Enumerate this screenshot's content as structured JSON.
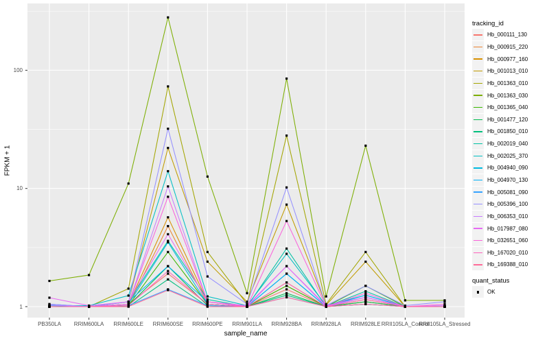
{
  "chart_data": {
    "type": "line",
    "title": "",
    "xlabel": "sample_name",
    "ylabel": "FPKM + 1",
    "y_scale": "log10",
    "y_ticks": [
      "1",
      "10",
      "100"
    ],
    "y_tick_values": [
      1,
      10,
      100
    ],
    "y_minor_values": [
      3.1623,
      31.623,
      316.23
    ],
    "ylim": [
      0.82,
      360
    ],
    "grid": true,
    "panel_background": "#EBEBEB",
    "gridline_color": "#FFFFFF",
    "point_color": "#000000",
    "axis_text_color": "#4D4D4D",
    "legend_position": "right",
    "legend_titles": {
      "tracking": "tracking_id",
      "quant": "quant_status"
    },
    "quant_label": "OK",
    "quant_marker": "black-square",
    "categories": [
      "PB350LA",
      "RRIM600LA",
      "RRIM600LE",
      "RRIM600SE",
      "RRIM600PE",
      "RRIM901LA",
      "RRIM928BA",
      "RRIM928LA",
      "RRIM928LE",
      "RRII105LA_Control",
      "RRII105LA_Stressed"
    ],
    "series": [
      {
        "name": "Hb_000111_130",
        "color": "#F8766D",
        "values": [
          1.02,
          1.0,
          1.05,
          1.9,
          1.05,
          1.0,
          1.4,
          1.0,
          1.1,
          1.0,
          1.0
        ]
      },
      {
        "name": "Hb_000915_220",
        "color": "#EA8331",
        "values": [
          1.0,
          1.0,
          1.02,
          4.8,
          1.05,
          1.0,
          1.5,
          1.0,
          1.1,
          1.0,
          1.0
        ]
      },
      {
        "name": "Hb_000977_160",
        "color": "#D89000",
        "values": [
          1.0,
          1.0,
          1.05,
          5.7,
          1.1,
          1.0,
          1.6,
          1.0,
          1.15,
          1.0,
          1.0
        ]
      },
      {
        "name": "Hb_001013_010",
        "color": "#C09B00",
        "values": [
          1.0,
          1.0,
          1.1,
          22.0,
          2.4,
          1.1,
          7.3,
          1.03,
          2.4,
          1.0,
          1.0
        ]
      },
      {
        "name": "Hb_001363_010",
        "color": "#A3A500",
        "values": [
          1.0,
          1.0,
          1.42,
          73.0,
          2.9,
          1.05,
          28.0,
          1.05,
          2.9,
          1.0,
          1.0
        ]
      },
      {
        "name": "Hb_001363_030",
        "color": "#7CAE00",
        "values": [
          1.65,
          1.85,
          11.0,
          280.0,
          12.6,
          1.3,
          85.0,
          1.22,
          23.0,
          1.13,
          1.13
        ]
      },
      {
        "name": "Hb_001365_040",
        "color": "#39B600",
        "values": [
          1.0,
          1.0,
          1.02,
          2.9,
          1.05,
          1.0,
          1.5,
          1.0,
          1.5,
          1.0,
          1.0
        ]
      },
      {
        "name": "Hb_001477_120",
        "color": "#00BB4E",
        "values": [
          1.0,
          1.0,
          1.02,
          2.2,
          1.02,
          1.0,
          1.3,
          1.0,
          1.1,
          1.0,
          1.0
        ]
      },
      {
        "name": "Hb_001850_010",
        "color": "#00BF7D",
        "values": [
          1.0,
          1.0,
          1.0,
          1.7,
          1.0,
          1.0,
          1.25,
          1.0,
          1.05,
          1.0,
          1.0
        ]
      },
      {
        "name": "Hb_002019_040",
        "color": "#00C1A3",
        "values": [
          1.0,
          1.0,
          1.1,
          3.6,
          1.15,
          1.0,
          3.1,
          1.0,
          1.35,
          1.0,
          1.0
        ]
      },
      {
        "name": "Hb_002025_370",
        "color": "#00BFC4",
        "values": [
          1.02,
          1.02,
          1.24,
          14.0,
          1.22,
          1.02,
          2.8,
          1.02,
          1.25,
          1.0,
          1.0
        ]
      },
      {
        "name": "Hb_004940_090",
        "color": "#00BAE0",
        "values": [
          1.02,
          1.0,
          1.05,
          3.5,
          1.05,
          1.0,
          1.9,
          1.0,
          1.2,
          1.0,
          1.0
        ]
      },
      {
        "name": "Hb_004970_130",
        "color": "#00B0F6",
        "values": [
          1.05,
          1.0,
          1.1,
          2.2,
          1.1,
          1.0,
          1.9,
          1.0,
          1.25,
          1.0,
          1.02
        ]
      },
      {
        "name": "Hb_005081_090",
        "color": "#35A2FF",
        "values": [
          1.0,
          1.0,
          1.02,
          1.4,
          1.02,
          1.0,
          1.2,
          1.0,
          1.05,
          1.0,
          1.0
        ]
      },
      {
        "name": "Hb_005396_100",
        "color": "#9590FF",
        "values": [
          1.05,
          1.0,
          1.1,
          32.0,
          1.8,
          1.05,
          10.2,
          1.02,
          1.5,
          1.02,
          1.1
        ]
      },
      {
        "name": "Hb_006353_010",
        "color": "#C77CFF",
        "values": [
          1.03,
          1.0,
          1.05,
          10.4,
          1.1,
          1.0,
          2.2,
          1.0,
          1.2,
          1.0,
          1.0
        ]
      },
      {
        "name": "Hb_017987_080",
        "color": "#E76BF3",
        "values": [
          1.19,
          1.02,
          1.1,
          4.1,
          1.1,
          1.02,
          2.2,
          1.02,
          1.2,
          1.0,
          1.02
        ]
      },
      {
        "name": "Hb_032651_060",
        "color": "#FA62DB",
        "values": [
          1.0,
          1.0,
          1.05,
          8.5,
          1.1,
          1.0,
          5.3,
          1.0,
          1.3,
          1.0,
          1.05
        ]
      },
      {
        "name": "Hb_167020_010",
        "color": "#FF62BC",
        "values": [
          1.0,
          1.0,
          1.02,
          2.0,
          1.05,
          1.0,
          1.6,
          1.0,
          1.15,
          1.0,
          1.0
        ]
      },
      {
        "name": "Hb_169388_010",
        "color": "#FF6A98",
        "values": [
          1.0,
          1.0,
          1.0,
          1.38,
          1.0,
          1.0,
          1.2,
          1.0,
          1.05,
          1.0,
          1.0
        ]
      }
    ]
  }
}
